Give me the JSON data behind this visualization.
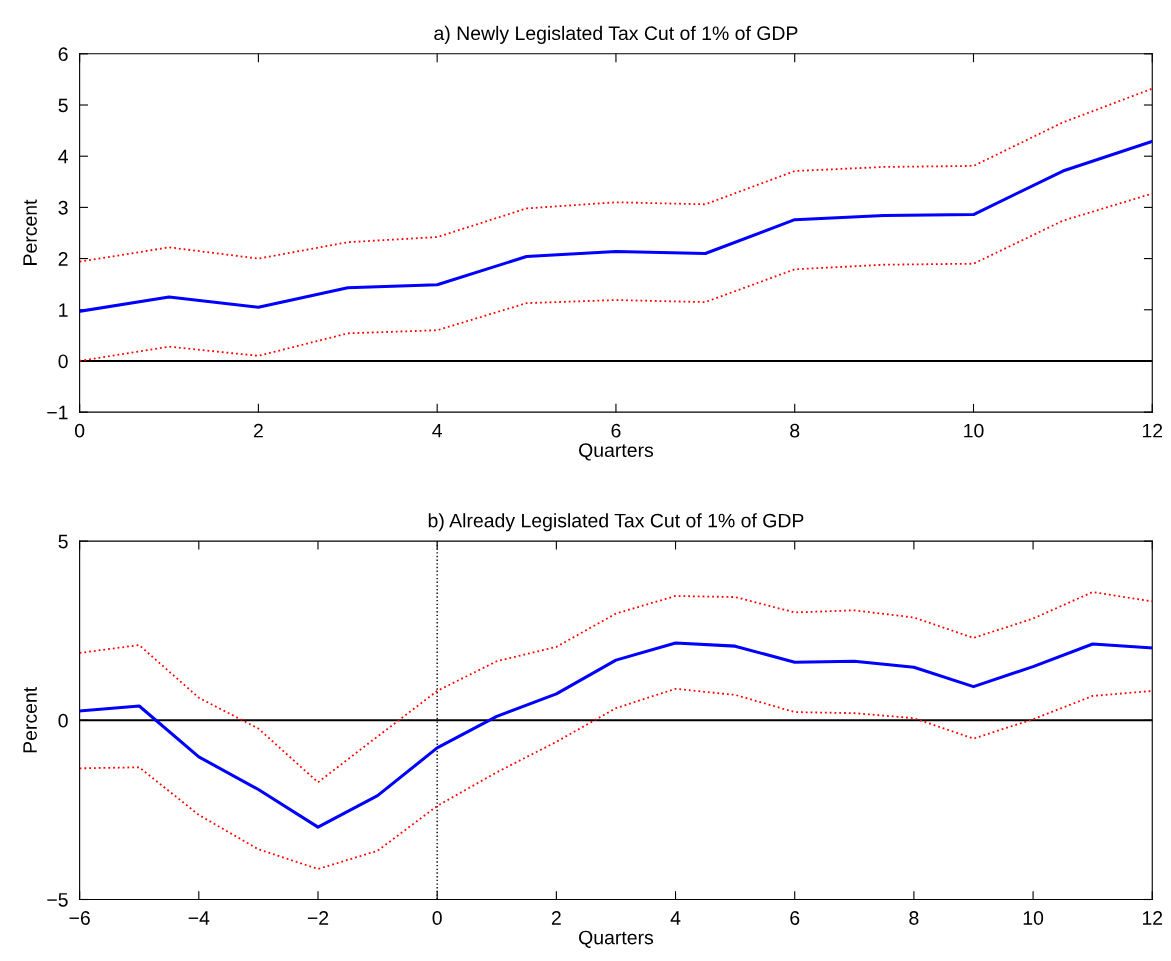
{
  "chart_data": [
    {
      "type": "line",
      "title": "a) Newly Legislated Tax Cut of 1% of GDP",
      "xlabel": "Quarters",
      "ylabel": "Percent",
      "x": [
        0,
        1,
        2,
        3,
        4,
        5,
        6,
        7,
        8,
        9,
        10,
        11,
        12
      ],
      "xlim": [
        0,
        12
      ],
      "xticks": [
        0,
        2,
        4,
        6,
        8,
        10,
        12
      ],
      "ylim": [
        -1,
        6
      ],
      "yticks": [
        -1,
        0,
        1,
        2,
        3,
        4,
        5,
        6
      ],
      "grid": false,
      "marker": "none",
      "series": [
        {
          "color": "#0000ff",
          "line_style": "solid",
          "values": [
            0.97,
            1.25,
            1.05,
            1.43,
            1.49,
            2.04,
            2.14,
            2.1,
            2.76,
            2.84,
            2.86,
            3.71,
            4.29
          ]
        },
        {
          "color": "#ff0000",
          "line_style": "dotted",
          "values": [
            1.94,
            2.22,
            2.0,
            2.32,
            2.42,
            2.98,
            3.1,
            3.06,
            3.71,
            3.79,
            3.81,
            4.66,
            5.32
          ]
        },
        {
          "color": "#ff0000",
          "line_style": "dotted",
          "values": [
            0.0,
            0.28,
            0.1,
            0.54,
            0.6,
            1.13,
            1.19,
            1.15,
            1.79,
            1.88,
            1.9,
            2.74,
            3.27
          ]
        }
      ],
      "ref_lines": [
        {
          "axis": "y",
          "value": 0,
          "color": "#000000",
          "line_style": "solid"
        }
      ]
    },
    {
      "type": "line",
      "title": "b) Already Legislated Tax Cut of 1% of GDP",
      "xlabel": "Quarters",
      "ylabel": "Percent",
      "x": [
        -6,
        -5,
        -4,
        -3,
        -2,
        -1,
        0,
        1,
        2,
        3,
        4,
        5,
        6,
        7,
        8,
        9,
        10,
        11,
        12
      ],
      "xlim": [
        -6,
        12
      ],
      "xticks": [
        -6,
        -4,
        -2,
        0,
        2,
        4,
        6,
        8,
        10,
        12
      ],
      "ylim": [
        -5,
        5
      ],
      "yticks": [
        -5,
        0,
        5
      ],
      "grid": false,
      "marker": "none",
      "series": [
        {
          "color": "#0000ff",
          "line_style": "solid",
          "values": [
            0.26,
            0.4,
            -1.02,
            -1.93,
            -2.98,
            -2.1,
            -0.77,
            0.11,
            0.74,
            1.68,
            2.16,
            2.07,
            1.62,
            1.65,
            1.48,
            0.94,
            1.5,
            2.13,
            2.02
          ]
        },
        {
          "color": "#ff0000",
          "line_style": "dotted",
          "values": [
            1.88,
            2.1,
            0.63,
            -0.23,
            -1.73,
            -0.45,
            0.82,
            1.65,
            2.05,
            2.98,
            3.47,
            3.44,
            3.01,
            3.07,
            2.87,
            2.3,
            2.84,
            3.58,
            3.32
          ]
        },
        {
          "color": "#ff0000",
          "line_style": "dotted",
          "values": [
            -1.34,
            -1.31,
            -2.64,
            -3.6,
            -4.15,
            -3.64,
            -2.39,
            -1.45,
            -0.6,
            0.34,
            0.88,
            0.71,
            0.23,
            0.2,
            0.06,
            -0.51,
            0.03,
            0.68,
            0.82
          ]
        }
      ],
      "ref_lines": [
        {
          "axis": "y",
          "value": 0,
          "color": "#000000",
          "line_style": "solid"
        },
        {
          "axis": "x",
          "value": 0,
          "color": "#000000",
          "line_style": "dotted"
        }
      ]
    }
  ]
}
